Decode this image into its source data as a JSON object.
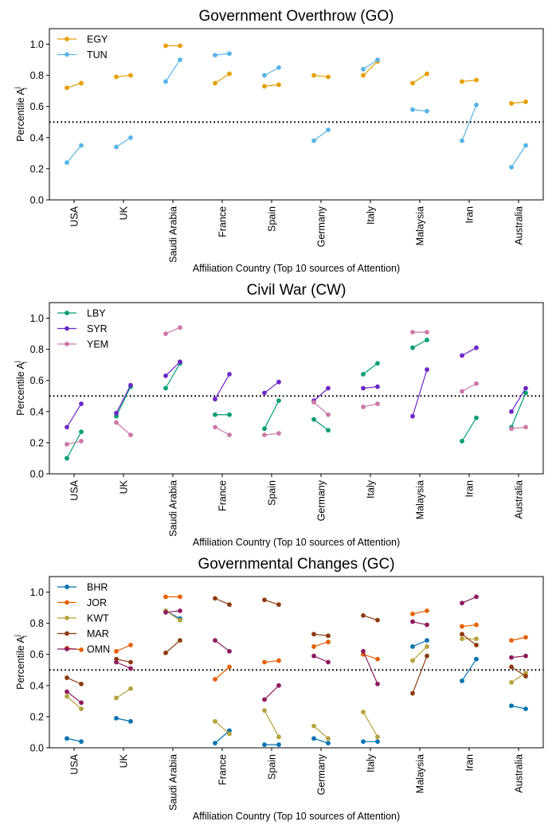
{
  "chart_data": [
    {
      "type": "scatter",
      "title": "Government Overthrow (GO)",
      "xlabel": "Affiliation Country (Top 10 sources of Attention)",
      "ylabel": "Percentile A",
      "ylabel_sup": "j",
      "ylabel_sub": "i",
      "ylim": [
        0,
        1.1
      ],
      "yticks": [
        0.0,
        0.2,
        0.4,
        0.6,
        0.8,
        1.0
      ],
      "ytick_labels": [
        "0.0",
        "0.2",
        "0.4",
        "0.6",
        "0.8",
        "1.0"
      ],
      "threshold": 0.5,
      "legend_position": "top-left",
      "categories": [
        "USA",
        "UK",
        "Saudi Arabia",
        "France",
        "Spain",
        "Germany",
        "Italy",
        "Malaysia",
        "Iran",
        "Australia"
      ],
      "series": [
        {
          "name": "EGY",
          "color": "#E69F00",
          "values": [
            [
              0.72,
              0.75
            ],
            [
              0.79,
              0.8
            ],
            [
              0.99,
              0.99
            ],
            [
              0.75,
              0.81
            ],
            [
              0.73,
              0.74
            ],
            [
              0.8,
              0.79
            ],
            [
              0.8,
              0.89
            ],
            [
              0.75,
              0.81
            ],
            [
              0.76,
              0.77
            ],
            [
              0.62,
              0.63
            ]
          ]
        },
        {
          "name": "TUN",
          "color": "#56B4E9",
          "values": [
            [
              0.24,
              0.35
            ],
            [
              0.34,
              0.4
            ],
            [
              0.76,
              0.9
            ],
            [
              0.93,
              0.94
            ],
            [
              0.8,
              0.85
            ],
            [
              0.38,
              0.45
            ],
            [
              0.84,
              0.9
            ],
            [
              0.58,
              0.57
            ],
            [
              0.38,
              0.61
            ],
            [
              0.21,
              0.35
            ]
          ]
        }
      ]
    },
    {
      "type": "scatter",
      "title": "Civil War (CW)",
      "xlabel": "Affiliation Country (Top 10 sources of Attention)",
      "ylabel": "Percentile A",
      "ylabel_sup": "j",
      "ylabel_sub": "i",
      "ylim": [
        0,
        1.1
      ],
      "yticks": [
        0.0,
        0.2,
        0.4,
        0.6,
        0.8,
        1.0
      ],
      "ytick_labels": [
        "0.0",
        "0.2",
        "0.4",
        "0.6",
        "0.8",
        "1.0"
      ],
      "threshold": 0.5,
      "legend_position": "top-left",
      "categories": [
        "USA",
        "UK",
        "Saudi Arabia",
        "France",
        "Spain",
        "Germany",
        "Italy",
        "Malaysia",
        "Iran",
        "Australia"
      ],
      "series": [
        {
          "name": "LBY",
          "color": "#009E73",
          "values": [
            [
              0.1,
              0.27
            ],
            [
              0.37,
              0.56
            ],
            [
              0.55,
              0.71
            ],
            [
              0.38,
              0.38
            ],
            [
              0.29,
              0.47
            ],
            [
              0.35,
              0.28
            ],
            [
              0.64,
              0.71
            ],
            [
              0.81,
              0.86
            ],
            [
              0.21,
              0.36
            ],
            [
              0.3,
              0.52
            ]
          ]
        },
        {
          "name": "SYR",
          "color": "#6A28C8",
          "values": [
            [
              0.3,
              0.45
            ],
            [
              0.39,
              0.57
            ],
            [
              0.63,
              0.72
            ],
            [
              0.48,
              0.64
            ],
            [
              0.52,
              0.59
            ],
            [
              0.47,
              0.55
            ],
            [
              0.55,
              0.56
            ],
            [
              0.37,
              0.67
            ],
            [
              0.76,
              0.81
            ],
            [
              0.4,
              0.55
            ]
          ]
        },
        {
          "name": "YEM",
          "color": "#CC79A7",
          "values": [
            [
              0.19,
              0.21
            ],
            [
              0.33,
              0.25
            ],
            [
              0.9,
              0.94
            ],
            [
              0.3,
              0.25
            ],
            [
              0.25,
              0.26
            ],
            [
              0.46,
              0.38
            ],
            [
              0.43,
              0.45
            ],
            [
              0.91,
              0.91
            ],
            [
              0.53,
              0.58
            ],
            [
              0.29,
              0.3
            ]
          ]
        }
      ]
    },
    {
      "type": "scatter",
      "title": "Governmental Changes (GC)",
      "xlabel": "Affiliation Country (Top 10 sources of Attention)",
      "ylabel": "Percentile A",
      "ylabel_sup": "j",
      "ylabel_sub": "i",
      "ylim": [
        0,
        1.1
      ],
      "yticks": [
        0.0,
        0.2,
        0.4,
        0.6,
        0.8,
        1.0
      ],
      "ytick_labels": [
        "0.0",
        "0.2",
        "0.4",
        "0.6",
        "0.8",
        "1.0"
      ],
      "threshold": 0.5,
      "legend_position": "top-left",
      "categories": [
        "USA",
        "UK",
        "Saudi Arabia",
        "France",
        "Spain",
        "Germany",
        "Italy",
        "Malaysia",
        "Iran",
        "Australia"
      ],
      "series": [
        {
          "name": "BHR",
          "color": "#0072B2",
          "values": [
            [
              0.06,
              0.04
            ],
            [
              0.19,
              0.17
            ],
            [
              0.88,
              0.83
            ],
            [
              0.03,
              0.11
            ],
            [
              0.02,
              0.02
            ],
            [
              0.06,
              0.03
            ],
            [
              0.04,
              0.04
            ],
            [
              0.65,
              0.69
            ],
            [
              0.43,
              0.57
            ],
            [
              0.27,
              0.25
            ]
          ]
        },
        {
          "name": "JOR",
          "color": "#E66100",
          "values": [
            [
              0.64,
              0.63
            ],
            [
              0.62,
              0.66
            ],
            [
              0.97,
              0.97
            ],
            [
              0.44,
              0.52
            ],
            [
              0.55,
              0.56
            ],
            [
              0.65,
              0.68
            ],
            [
              0.6,
              0.57
            ],
            [
              0.86,
              0.88
            ],
            [
              0.78,
              0.79
            ],
            [
              0.69,
              0.71
            ]
          ]
        },
        {
          "name": "KWT",
          "color": "#B5A33A",
          "values": [
            [
              0.33,
              0.25
            ],
            [
              0.32,
              0.38
            ],
            [
              0.88,
              0.82
            ],
            [
              0.17,
              0.09
            ],
            [
              0.24,
              0.07
            ],
            [
              0.14,
              0.06
            ],
            [
              0.23,
              0.07
            ],
            [
              0.56,
              0.65
            ],
            [
              0.7,
              0.7
            ],
            [
              0.42,
              0.48
            ]
          ]
        },
        {
          "name": "MAR",
          "color": "#8B3A0F",
          "values": [
            [
              0.45,
              0.41
            ],
            [
              0.57,
              0.55
            ],
            [
              0.61,
              0.69
            ],
            [
              0.96,
              0.92
            ],
            [
              0.95,
              0.92
            ],
            [
              0.73,
              0.72
            ],
            [
              0.85,
              0.82
            ],
            [
              0.35,
              0.59
            ],
            [
              0.73,
              0.66
            ],
            [
              0.52,
              0.46
            ]
          ]
        },
        {
          "name": "OMN",
          "color": "#8E1B5E",
          "values": [
            [
              0.36,
              0.29
            ],
            [
              0.55,
              0.51
            ],
            [
              0.87,
              0.88
            ],
            [
              0.69,
              0.62
            ],
            [
              0.31,
              0.4
            ],
            [
              0.59,
              0.55
            ],
            [
              0.62,
              0.41
            ],
            [
              0.81,
              0.79
            ],
            [
              0.93,
              0.97
            ],
            [
              0.58,
              0.59
            ]
          ]
        }
      ]
    }
  ]
}
